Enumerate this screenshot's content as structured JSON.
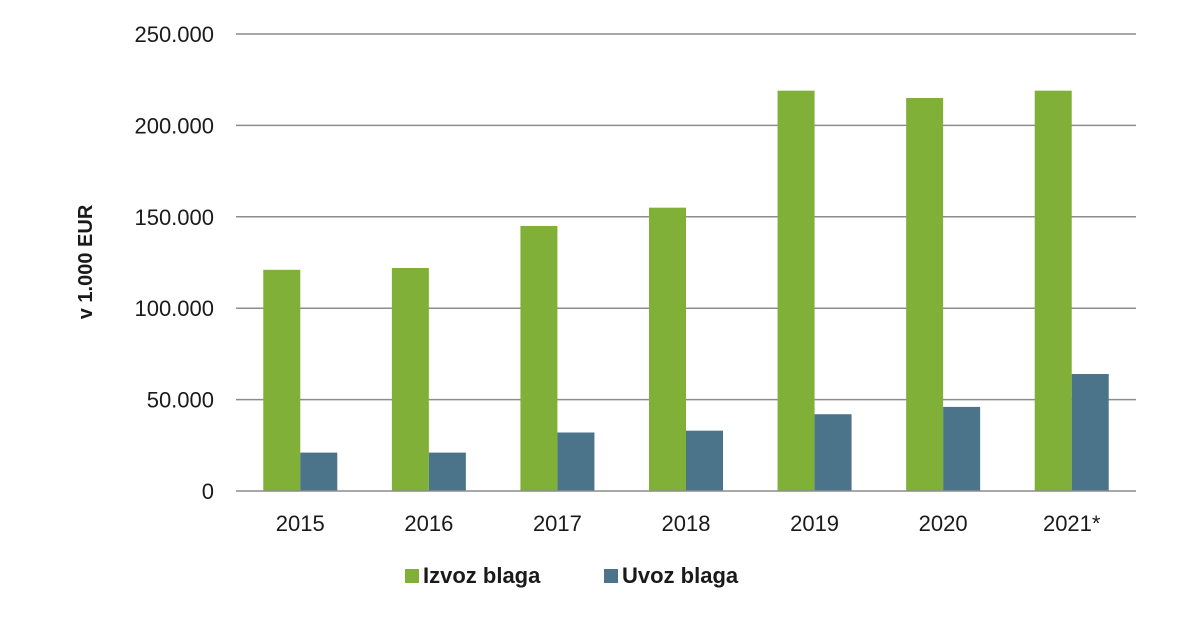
{
  "chart_data": {
    "type": "bar",
    "title": "",
    "xlabel": "",
    "ylabel": "v 1.000 EUR",
    "ylim": [
      0,
      250000
    ],
    "yticks": [
      0,
      50000,
      100000,
      150000,
      200000,
      250000
    ],
    "ytick_labels": [
      "0",
      "50.000",
      "100.000",
      "150.000",
      "200.000",
      "250.000"
    ],
    "categories": [
      "2015",
      "2016",
      "2017",
      "2018",
      "2019",
      "2020",
      "2021*"
    ],
    "series": [
      {
        "name": "Izvoz blaga",
        "color": "#80b038",
        "values": [
          121000,
          122000,
          145000,
          155000,
          219000,
          215000,
          219000
        ]
      },
      {
        "name": "Uvoz blaga",
        "color": "#4b7389",
        "values": [
          21000,
          21000,
          32000,
          33000,
          42000,
          46000,
          64000
        ]
      }
    ],
    "grid": true,
    "legend_position": "bottom-center"
  }
}
